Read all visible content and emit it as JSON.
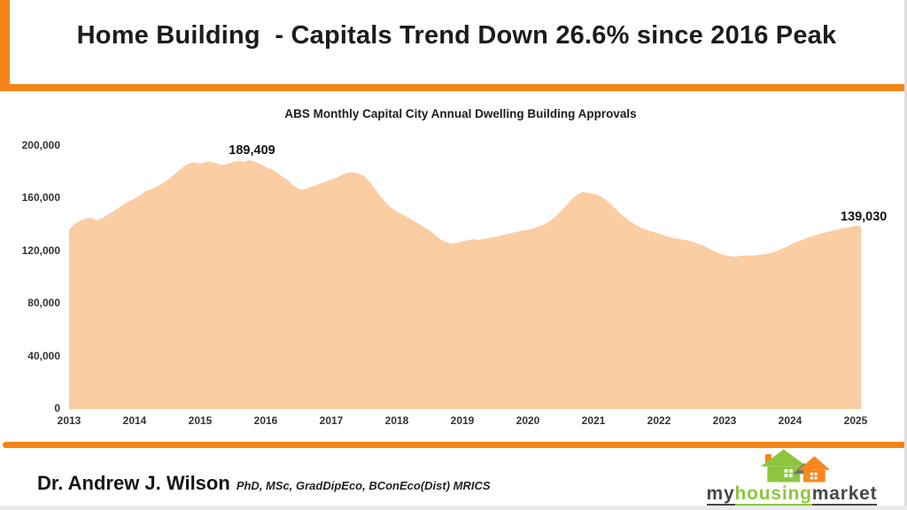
{
  "header": {
    "title": "Home Building  - Capitals Trend Down 26.6% since 2016 Peak"
  },
  "chart_data": {
    "type": "area",
    "title": "ABS Monthly Capital City Annual Dwelling Building Approvals",
    "series_name": "Capital city annual dwelling building approvals",
    "frequency": "monthly",
    "x_start_year": 2013,
    "points_per_year": 12,
    "x_tick_labels": [
      "2013",
      "2014",
      "2015",
      "2016",
      "2017",
      "2018",
      "2019",
      "2020",
      "2021",
      "2022",
      "2023",
      "2024",
      "2025"
    ],
    "y_ticks": [
      0,
      40000,
      80000,
      120000,
      160000,
      200000
    ],
    "y_tick_labels": [
      "0",
      "40,000",
      "80,000",
      "120,000",
      "160,000",
      "200,000"
    ],
    "ylim": [
      0,
      200000
    ],
    "xlim": [
      2013,
      2025.6
    ],
    "grid": false,
    "legend": false,
    "annotations": [
      {
        "label": "189,409",
        "month_index": 33,
        "value": 189409
      },
      {
        "label": "139,030",
        "month_index": 145,
        "value": 139030
      }
    ],
    "values": [
      136500,
      140800,
      143200,
      144800,
      145400,
      143600,
      145000,
      147500,
      150200,
      152800,
      155600,
      158000,
      160200,
      162500,
      165800,
      167200,
      169000,
      171500,
      174000,
      177500,
      181000,
      184500,
      186800,
      187600,
      186800,
      187900,
      188300,
      186900,
      185600,
      186300,
      187900,
      188700,
      188100,
      189409,
      188300,
      186400,
      184000,
      182400,
      180000,
      177000,
      174400,
      170400,
      167400,
      166900,
      168400,
      170000,
      171500,
      173000,
      174500,
      176100,
      178100,
      179600,
      180100,
      179000,
      177400,
      172900,
      167400,
      161900,
      156900,
      152900,
      150000,
      148000,
      146000,
      143500,
      141000,
      138400,
      135900,
      132400,
      129000,
      127000,
      125800,
      126400,
      127400,
      128400,
      129200,
      128700,
      129400,
      130100,
      130900,
      131900,
      132900,
      133900,
      134900,
      135700,
      136400,
      137400,
      138900,
      140400,
      142900,
      146400,
      150400,
      154900,
      159400,
      162900,
      165100,
      164400,
      163700,
      162400,
      159900,
      156400,
      152400,
      148400,
      144900,
      141900,
      139400,
      137400,
      135900,
      134900,
      133400,
      131900,
      130700,
      129900,
      129100,
      128400,
      127400,
      126100,
      124400,
      122400,
      120400,
      118400,
      117100,
      116200,
      115900,
      116400,
      116900,
      116700,
      117100,
      117700,
      118400,
      119400,
      120900,
      122900,
      124900,
      126700,
      128400,
      129900,
      131400,
      132700,
      133900,
      134900,
      136100,
      136900,
      137700,
      138400,
      139400,
      139030
    ]
  },
  "footer": {
    "author": "Dr. Andrew J. Wilson",
    "credentials": "PhD, MSc, GradDipEco, BConEco(Dist) MRICS",
    "logo_my": "my",
    "logo_housing": "housing",
    "logo_market": "market"
  },
  "colors": {
    "accent_orange": "#F48416",
    "area_fill": "#FACDA2",
    "text_dark": "#1C1C1C",
    "logo_green": "#8CC63F",
    "logo_dark": "#474747",
    "logo_orange": "#F6881F",
    "logo_roof_gray": "#75756A"
  }
}
